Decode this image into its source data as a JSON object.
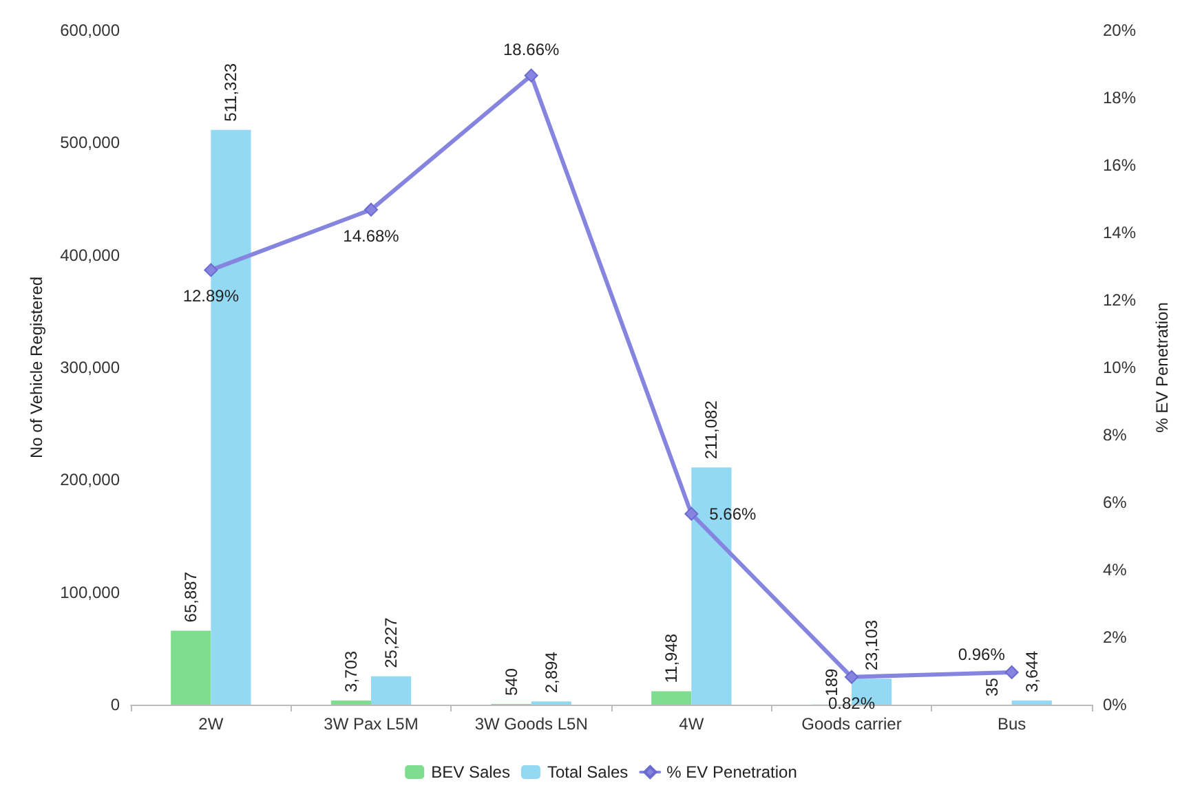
{
  "chart_data": {
    "type": "bar",
    "xlabel": null,
    "ylabel": "No of Vehicle Registered",
    "y2label": "% EV Penetration",
    "categories": [
      "2W",
      "3W Pax L5M",
      "3W Goods L5N",
      "4W",
      "Goods carrier",
      "Bus"
    ],
    "series": [
      {
        "name": "BEV Sales",
        "color": "#7fdd8f",
        "values": [
          65887,
          3703,
          540,
          11948,
          189,
          35
        ],
        "value_labels": [
          "65,887",
          "3,703",
          "540",
          "11,948",
          "189",
          "35"
        ]
      },
      {
        "name": "Total Sales",
        "color": "#93d9f3",
        "values": [
          511323,
          25227,
          2894,
          211082,
          23103,
          3644
        ],
        "value_labels": [
          "511,323",
          "25,227",
          "2,894",
          "211,082",
          "23,103",
          "3,644"
        ]
      },
      {
        "name": "% EV Penetration",
        "type": "line",
        "axis": "y2",
        "color": "#8585e0",
        "marker": "diamond",
        "values": [
          12.89,
          14.68,
          18.66,
          5.66,
          0.82,
          0.96
        ],
        "value_labels": [
          "12.89%",
          "14.68%",
          "18.66%",
          "5.66%",
          "0.82%",
          "0.96%"
        ]
      }
    ],
    "ylim": [
      0,
      600000
    ],
    "yticks": [
      0,
      {
        "value": 100000,
        "label": "100,000"
      },
      {
        "value": 200000,
        "label": "200,000"
      },
      {
        "value": 300000,
        "label": "300,000"
      },
      {
        "value": 400000,
        "label": "400,000"
      },
      {
        "value": 500000,
        "label": "500,000"
      },
      {
        "value": 600000,
        "label": "600,000"
      }
    ],
    "y2lim": [
      0,
      20
    ],
    "y2ticks": [
      {
        "value": 0,
        "label": "0%"
      },
      {
        "value": 2,
        "label": "2%"
      },
      {
        "value": 4,
        "label": "4%"
      },
      {
        "value": 6,
        "label": "6%"
      },
      {
        "value": 8,
        "label": "8%"
      },
      {
        "value": 10,
        "label": "10%"
      },
      {
        "value": 12,
        "label": "12%"
      },
      {
        "value": 14,
        "label": "14%"
      },
      {
        "value": 16,
        "label": "16%"
      },
      {
        "value": 18,
        "label": "18%"
      },
      {
        "value": 20,
        "label": "20%"
      }
    ],
    "grid": false,
    "legend": "bottom"
  }
}
